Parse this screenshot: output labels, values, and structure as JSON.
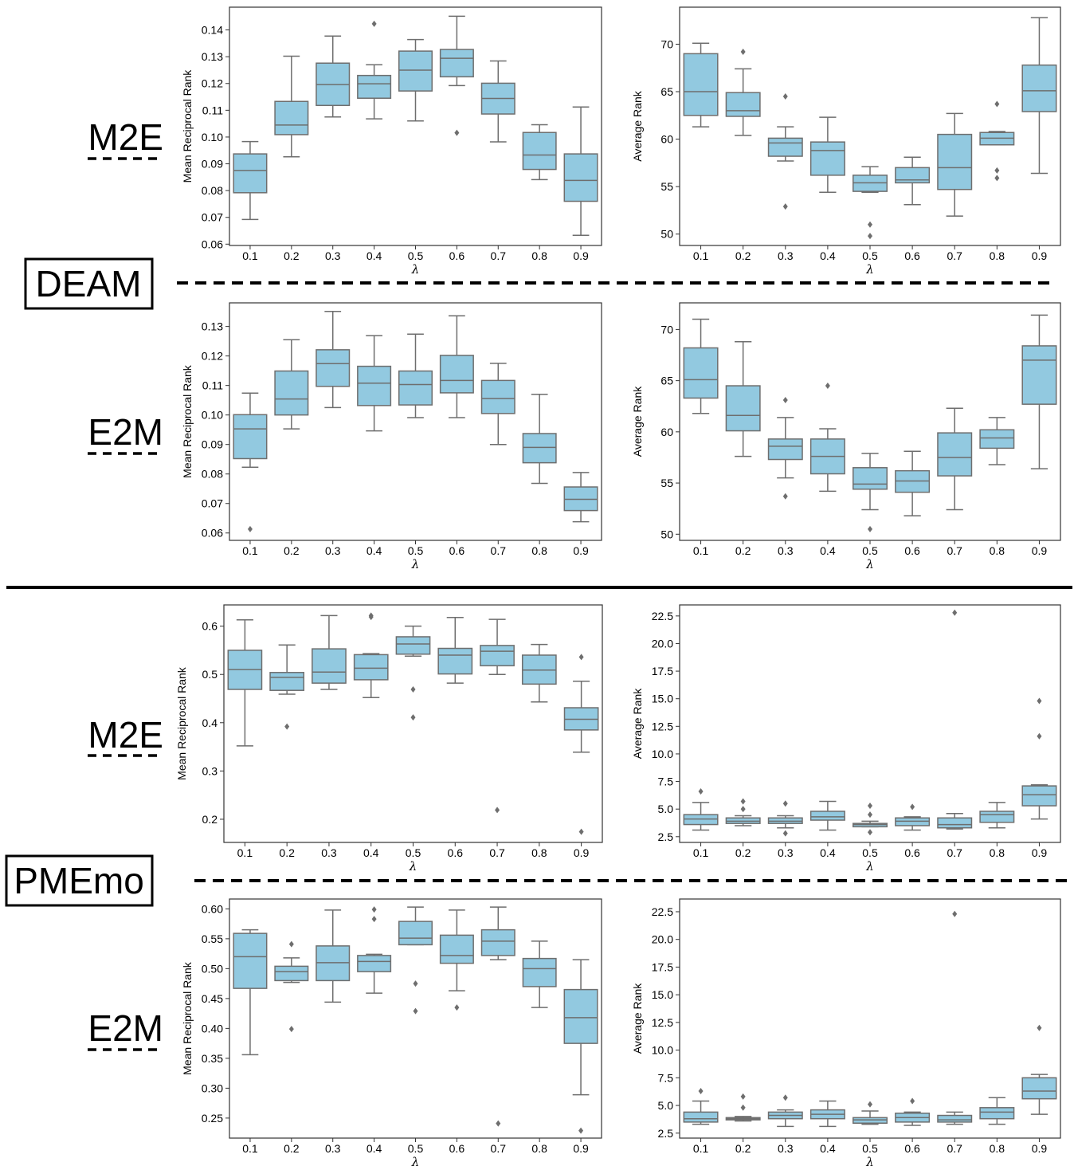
{
  "figure": {
    "groups": [
      {
        "name": "DEAM",
        "rows": [
          "M2E",
          "E2M"
        ]
      },
      {
        "name": "PMEmo",
        "rows": [
          "M2E",
          "E2M"
        ]
      }
    ]
  },
  "style": {
    "box_fill": "#92c9e0",
    "box_edge": "#6e6e6e",
    "separator": "#000000"
  },
  "chart_data": [
    {
      "id": "deam-m2e-mrr",
      "type": "box",
      "group": "DEAM",
      "row": "M2E",
      "xlabel": "λ",
      "ylabel": "Mean Reciprocal Rank",
      "categories": [
        "0.1",
        "0.2",
        "0.3",
        "0.4",
        "0.5",
        "0.6",
        "0.7",
        "0.8",
        "0.9"
      ],
      "ylim": [
        0.0595,
        0.1485
      ],
      "yticks": [
        0.06,
        0.07,
        0.08,
        0.09,
        0.1,
        0.11,
        0.12,
        0.13,
        0.14
      ],
      "ytick_labels": [
        "0.06",
        "0.07",
        "0.08",
        "0.09",
        "0.10",
        "0.11",
        "0.12",
        "0.13",
        "0.14"
      ],
      "boxes": [
        {
          "whislo": 0.0692,
          "q1": 0.0792,
          "med": 0.0875,
          "q3": 0.0937,
          "whishi": 0.0983,
          "fliers": []
        },
        {
          "whislo": 0.0926,
          "q1": 0.1009,
          "med": 0.1045,
          "q3": 0.1133,
          "whishi": 0.1302,
          "fliers": []
        },
        {
          "whislo": 0.1075,
          "q1": 0.1118,
          "med": 0.1196,
          "q3": 0.1276,
          "whishi": 0.1377,
          "fliers": []
        },
        {
          "whislo": 0.1068,
          "q1": 0.1145,
          "med": 0.1199,
          "q3": 0.123,
          "whishi": 0.127,
          "fliers": [
            0.1423
          ]
        },
        {
          "whislo": 0.106,
          "q1": 0.1172,
          "med": 0.125,
          "q3": 0.1321,
          "whishi": 0.1364,
          "fliers": []
        },
        {
          "whislo": 0.1192,
          "q1": 0.1225,
          "med": 0.1294,
          "q3": 0.1327,
          "whishi": 0.1451,
          "fliers": [
            0.1016
          ]
        },
        {
          "whislo": 0.0982,
          "q1": 0.1086,
          "med": 0.1144,
          "q3": 0.1201,
          "whishi": 0.1284,
          "fliers": []
        },
        {
          "whislo": 0.0841,
          "q1": 0.0879,
          "med": 0.0933,
          "q3": 0.1017,
          "whishi": 0.1046,
          "fliers": []
        },
        {
          "whislo": 0.0633,
          "q1": 0.076,
          "med": 0.0838,
          "q3": 0.0937,
          "whishi": 0.1112,
          "fliers": []
        }
      ]
    },
    {
      "id": "deam-m2e-ar",
      "type": "box",
      "group": "DEAM",
      "row": "M2E",
      "xlabel": "λ",
      "ylabel": "Average Rank",
      "categories": [
        "0.1",
        "0.2",
        "0.3",
        "0.4",
        "0.5",
        "0.6",
        "0.7",
        "0.8",
        "0.9"
      ],
      "ylim": [
        48.8,
        73.9
      ],
      "yticks": [
        50,
        55,
        60,
        65,
        70
      ],
      "ytick_labels": [
        "50",
        "55",
        "60",
        "65",
        "70"
      ],
      "boxes": [
        {
          "whislo": 61.3,
          "q1": 62.5,
          "med": 65.0,
          "q3": 69.0,
          "whishi": 70.1,
          "fliers": []
        },
        {
          "whislo": 60.4,
          "q1": 62.4,
          "med": 63.0,
          "q3": 64.9,
          "whishi": 67.4,
          "fliers": [
            69.2
          ]
        },
        {
          "whislo": 57.7,
          "q1": 58.2,
          "med": 59.6,
          "q3": 60.1,
          "whishi": 61.3,
          "fliers": [
            64.5,
            52.9
          ]
        },
        {
          "whislo": 54.4,
          "q1": 56.2,
          "med": 58.8,
          "q3": 59.7,
          "whishi": 62.3,
          "fliers": []
        },
        {
          "whislo": 54.4,
          "q1": 54.5,
          "med": 55.4,
          "q3": 56.2,
          "whishi": 57.1,
          "fliers": [
            51.0,
            49.8
          ]
        },
        {
          "whislo": 53.1,
          "q1": 55.4,
          "med": 55.7,
          "q3": 57.0,
          "whishi": 58.1,
          "fliers": []
        },
        {
          "whislo": 51.9,
          "q1": 54.7,
          "med": 57.0,
          "q3": 60.5,
          "whishi": 62.7,
          "fliers": []
        },
        {
          "whislo": 59.4,
          "q1": 59.4,
          "med": 60.1,
          "q3": 60.7,
          "whishi": 60.8,
          "fliers": [
            63.7,
            56.7,
            55.9
          ]
        },
        {
          "whislo": 56.4,
          "q1": 62.9,
          "med": 65.1,
          "q3": 67.8,
          "whishi": 72.8,
          "fliers": []
        }
      ]
    },
    {
      "id": "deam-e2m-mrr",
      "type": "box",
      "group": "DEAM",
      "row": "E2M",
      "xlabel": "λ",
      "ylabel": "Mean Reciprocal Rank",
      "categories": [
        "0.1",
        "0.2",
        "0.3",
        "0.4",
        "0.5",
        "0.6",
        "0.7",
        "0.8",
        "0.9"
      ],
      "ylim": [
        0.0575,
        0.138
      ],
      "yticks": [
        0.06,
        0.07,
        0.08,
        0.09,
        0.1,
        0.11,
        0.12,
        0.13
      ],
      "ytick_labels": [
        "0.06",
        "0.07",
        "0.08",
        "0.09",
        "0.10",
        "0.11",
        "0.12",
        "0.13"
      ],
      "boxes": [
        {
          "whislo": 0.0823,
          "q1": 0.0852,
          "med": 0.0953,
          "q3": 0.1001,
          "whishi": 0.1074,
          "fliers": [
            0.0613
          ]
        },
        {
          "whislo": 0.0953,
          "q1": 0.1,
          "med": 0.1054,
          "q3": 0.1149,
          "whishi": 0.1255,
          "fliers": []
        },
        {
          "whislo": 0.1025,
          "q1": 0.1097,
          "med": 0.1174,
          "q3": 0.1221,
          "whishi": 0.1351,
          "fliers": []
        },
        {
          "whislo": 0.0946,
          "q1": 0.1032,
          "med": 0.1108,
          "q3": 0.1165,
          "whishi": 0.1269,
          "fliers": []
        },
        {
          "whislo": 0.0991,
          "q1": 0.1034,
          "med": 0.1103,
          "q3": 0.1149,
          "whishi": 0.1274,
          "fliers": []
        },
        {
          "whislo": 0.0991,
          "q1": 0.1075,
          "med": 0.1117,
          "q3": 0.1202,
          "whishi": 0.1336,
          "fliers": []
        },
        {
          "whislo": 0.09,
          "q1": 0.1005,
          "med": 0.1056,
          "q3": 0.1117,
          "whishi": 0.1175,
          "fliers": []
        },
        {
          "whislo": 0.0768,
          "q1": 0.0838,
          "med": 0.089,
          "q3": 0.0937,
          "whishi": 0.107,
          "fliers": []
        },
        {
          "whislo": 0.0638,
          "q1": 0.0676,
          "med": 0.0714,
          "q3": 0.0756,
          "whishi": 0.0805,
          "fliers": []
        }
      ]
    },
    {
      "id": "deam-e2m-ar",
      "type": "box",
      "group": "DEAM",
      "row": "E2M",
      "xlabel": "λ",
      "ylabel": "Average Rank",
      "categories": [
        "0.1",
        "0.2",
        "0.3",
        "0.4",
        "0.5",
        "0.6",
        "0.7",
        "0.8",
        "0.9"
      ],
      "ylim": [
        49.4,
        72.6
      ],
      "yticks": [
        50,
        55,
        60,
        65,
        70
      ],
      "ytick_labels": [
        "50",
        "55",
        "60",
        "65",
        "70"
      ],
      "boxes": [
        {
          "whislo": 61.8,
          "q1": 63.3,
          "med": 65.1,
          "q3": 68.2,
          "whishi": 71.0,
          "fliers": []
        },
        {
          "whislo": 57.6,
          "q1": 60.1,
          "med": 61.6,
          "q3": 64.5,
          "whishi": 68.8,
          "fliers": []
        },
        {
          "whislo": 55.5,
          "q1": 57.3,
          "med": 58.6,
          "q3": 59.3,
          "whishi": 61.4,
          "fliers": [
            63.1,
            53.7
          ]
        },
        {
          "whislo": 54.2,
          "q1": 55.9,
          "med": 57.6,
          "q3": 59.3,
          "whishi": 60.3,
          "fliers": [
            64.5
          ]
        },
        {
          "whislo": 52.4,
          "q1": 54.4,
          "med": 54.9,
          "q3": 56.5,
          "whishi": 57.9,
          "fliers": [
            50.5
          ]
        },
        {
          "whislo": 51.8,
          "q1": 54.1,
          "med": 55.2,
          "q3": 56.2,
          "whishi": 58.1,
          "fliers": []
        },
        {
          "whislo": 52.4,
          "q1": 55.7,
          "med": 57.5,
          "q3": 59.9,
          "whishi": 62.3,
          "fliers": []
        },
        {
          "whislo": 56.8,
          "q1": 58.4,
          "med": 59.4,
          "q3": 60.2,
          "whishi": 61.4,
          "fliers": []
        },
        {
          "whislo": 56.4,
          "q1": 62.7,
          "med": 67.0,
          "q3": 68.4,
          "whishi": 71.4,
          "fliers": []
        }
      ]
    },
    {
      "id": "pmemo-m2e-mrr",
      "type": "box",
      "group": "PMEmo",
      "row": "M2E",
      "xlabel": "λ",
      "ylabel": "Mean Reciprocal Rank",
      "categories": [
        "0.1",
        "0.2",
        "0.3",
        "0.4",
        "0.5",
        "0.6",
        "0.7",
        "0.8",
        "0.9"
      ],
      "ylim": [
        0.152,
        0.644
      ],
      "yticks": [
        0.2,
        0.3,
        0.4,
        0.5,
        0.6
      ],
      "ytick_labels": [
        "0.2",
        "0.3",
        "0.4",
        "0.5",
        "0.6"
      ],
      "boxes": [
        {
          "whislo": 0.352,
          "q1": 0.469,
          "med": 0.51,
          "q3": 0.55,
          "whishi": 0.613,
          "fliers": []
        },
        {
          "whislo": 0.459,
          "q1": 0.467,
          "med": 0.494,
          "q3": 0.504,
          "whishi": 0.561,
          "fliers": [
            0.392
          ]
        },
        {
          "whislo": 0.469,
          "q1": 0.482,
          "med": 0.505,
          "q3": 0.553,
          "whishi": 0.622,
          "fliers": []
        },
        {
          "whislo": 0.452,
          "q1": 0.489,
          "med": 0.513,
          "q3": 0.541,
          "whishi": 0.543,
          "fliers": [
            0.619,
            0.622
          ]
        },
        {
          "whislo": 0.538,
          "q1": 0.542,
          "med": 0.563,
          "q3": 0.578,
          "whishi": 0.6,
          "fliers": [
            0.469,
            0.411
          ]
        },
        {
          "whislo": 0.482,
          "q1": 0.501,
          "med": 0.54,
          "q3": 0.554,
          "whishi": 0.618,
          "fliers": []
        },
        {
          "whislo": 0.5,
          "q1": 0.518,
          "med": 0.548,
          "q3": 0.56,
          "whishi": 0.614,
          "fliers": [
            0.219
          ]
        },
        {
          "whislo": 0.443,
          "q1": 0.48,
          "med": 0.509,
          "q3": 0.54,
          "whishi": 0.562,
          "fliers": []
        },
        {
          "whislo": 0.339,
          "q1": 0.385,
          "med": 0.407,
          "q3": 0.431,
          "whishi": 0.486,
          "fliers": [
            0.536,
            0.174
          ]
        }
      ]
    },
    {
      "id": "pmemo-m2e-ar",
      "type": "box",
      "group": "PMEmo",
      "row": "M2E",
      "xlabel": "λ",
      "ylabel": "Average Rank",
      "categories": [
        "0.1",
        "0.2",
        "0.3",
        "0.4",
        "0.5",
        "0.6",
        "0.7",
        "0.8",
        "0.9"
      ],
      "ylim": [
        1.98,
        23.5
      ],
      "yticks": [
        2.5,
        5.0,
        7.5,
        10.0,
        12.5,
        15.0,
        17.5,
        20.0,
        22.5
      ],
      "ytick_labels": [
        "2.5",
        "5.0",
        "7.5",
        "10.0",
        "12.5",
        "15.0",
        "17.5",
        "20.0",
        "22.5"
      ],
      "boxes": [
        {
          "whislo": 3.1,
          "q1": 3.6,
          "med": 4.1,
          "q3": 4.5,
          "whishi": 5.6,
          "fliers": [
            6.6
          ]
        },
        {
          "whislo": 3.5,
          "q1": 3.7,
          "med": 3.9,
          "q3": 4.2,
          "whishi": 4.4,
          "fliers": [
            5.0,
            5.7
          ]
        },
        {
          "whislo": 3.3,
          "q1": 3.7,
          "med": 3.9,
          "q3": 4.2,
          "whishi": 4.4,
          "fliers": [
            5.5,
            2.8
          ]
        },
        {
          "whislo": 3.1,
          "q1": 4.0,
          "med": 4.3,
          "q3": 4.8,
          "whishi": 5.7,
          "fliers": []
        },
        {
          "whislo": 3.4,
          "q1": 3.4,
          "med": 3.6,
          "q3": 3.7,
          "whishi": 3.9,
          "fliers": [
            4.5,
            5.3,
            2.9
          ]
        },
        {
          "whislo": 3.1,
          "q1": 3.5,
          "med": 3.9,
          "q3": 4.2,
          "whishi": 4.3,
          "fliers": [
            5.2
          ]
        },
        {
          "whislo": 3.2,
          "q1": 3.3,
          "med": 3.6,
          "q3": 4.2,
          "whishi": 4.6,
          "fliers": [
            22.8
          ]
        },
        {
          "whislo": 3.3,
          "q1": 3.8,
          "med": 4.5,
          "q3": 4.8,
          "whishi": 5.6,
          "fliers": []
        },
        {
          "whislo": 4.1,
          "q1": 5.3,
          "med": 6.3,
          "q3": 7.1,
          "whishi": 7.2,
          "fliers": [
            14.8,
            11.6
          ]
        }
      ]
    },
    {
      "id": "pmemo-e2m-mrr",
      "type": "box",
      "group": "PMEmo",
      "row": "E2M",
      "xlabel": "λ",
      "ylabel": "Mean Reciprocal Rank",
      "categories": [
        "0.1",
        "0.2",
        "0.3",
        "0.4",
        "0.5",
        "0.6",
        "0.7",
        "0.8",
        "0.9"
      ],
      "ylim": [
        0.2165,
        0.6165
      ],
      "yticks": [
        0.25,
        0.3,
        0.35,
        0.4,
        0.45,
        0.5,
        0.55,
        0.6
      ],
      "ytick_labels": [
        "0.25",
        "0.30",
        "0.35",
        "0.40",
        "0.45",
        "0.50",
        "0.55",
        "0.60"
      ],
      "boxes": [
        {
          "whislo": 0.356,
          "q1": 0.467,
          "med": 0.52,
          "q3": 0.559,
          "whishi": 0.565,
          "fliers": []
        },
        {
          "whislo": 0.477,
          "q1": 0.48,
          "med": 0.495,
          "q3": 0.504,
          "whishi": 0.518,
          "fliers": [
            0.541,
            0.399
          ]
        },
        {
          "whislo": 0.444,
          "q1": 0.48,
          "med": 0.51,
          "q3": 0.538,
          "whishi": 0.598,
          "fliers": []
        },
        {
          "whislo": 0.459,
          "q1": 0.495,
          "med": 0.512,
          "q3": 0.522,
          "whishi": 0.524,
          "fliers": [
            0.599,
            0.583
          ]
        },
        {
          "whislo": 0.54,
          "q1": 0.54,
          "med": 0.551,
          "q3": 0.579,
          "whishi": 0.603,
          "fliers": [
            0.475,
            0.429
          ]
        },
        {
          "whislo": 0.463,
          "q1": 0.509,
          "med": 0.522,
          "q3": 0.556,
          "whishi": 0.598,
          "fliers": [
            0.435
          ]
        },
        {
          "whislo": 0.515,
          "q1": 0.522,
          "med": 0.546,
          "q3": 0.565,
          "whishi": 0.603,
          "fliers": [
            0.241
          ]
        },
        {
          "whislo": 0.435,
          "q1": 0.47,
          "med": 0.5,
          "q3": 0.517,
          "whishi": 0.546,
          "fliers": []
        },
        {
          "whislo": 0.289,
          "q1": 0.375,
          "med": 0.418,
          "q3": 0.465,
          "whishi": 0.515,
          "fliers": [
            0.229
          ]
        }
      ]
    },
    {
      "id": "pmemo-e2m-ar",
      "type": "box",
      "group": "PMEmo",
      "row": "E2M",
      "xlabel": "λ",
      "ylabel": "Average Rank",
      "categories": [
        "0.1",
        "0.2",
        "0.3",
        "0.4",
        "0.5",
        "0.6",
        "0.7",
        "0.8",
        "0.9"
      ],
      "ylim": [
        2.05,
        23.65
      ],
      "yticks": [
        2.5,
        5.0,
        7.5,
        10.0,
        12.5,
        15.0,
        17.5,
        20.0,
        22.5
      ],
      "ytick_labels": [
        "2.5",
        "5.0",
        "7.5",
        "10.0",
        "12.5",
        "15.0",
        "17.5",
        "20.0",
        "22.5"
      ],
      "boxes": [
        {
          "whislo": 3.3,
          "q1": 3.5,
          "med": 3.8,
          "q3": 4.4,
          "whishi": 5.4,
          "fliers": [
            6.3
          ]
        },
        {
          "whislo": 3.6,
          "q1": 3.7,
          "med": 3.8,
          "q3": 3.9,
          "whishi": 4.0,
          "fliers": [
            4.8,
            5.8
          ]
        },
        {
          "whislo": 3.1,
          "q1": 3.8,
          "med": 4.1,
          "q3": 4.4,
          "whishi": 4.6,
          "fliers": [
            5.7
          ]
        },
        {
          "whislo": 3.1,
          "q1": 3.8,
          "med": 4.2,
          "q3": 4.6,
          "whishi": 5.4,
          "fliers": []
        },
        {
          "whislo": 3.3,
          "q1": 3.4,
          "med": 3.7,
          "q3": 3.9,
          "whishi": 4.5,
          "fliers": [
            5.1
          ]
        },
        {
          "whislo": 3.2,
          "q1": 3.5,
          "med": 3.9,
          "q3": 4.3,
          "whishi": 4.4,
          "fliers": [
            5.4
          ]
        },
        {
          "whislo": 3.3,
          "q1": 3.5,
          "med": 3.7,
          "q3": 4.1,
          "whishi": 4.4,
          "fliers": [
            22.3
          ]
        },
        {
          "whislo": 3.3,
          "q1": 3.8,
          "med": 4.4,
          "q3": 4.8,
          "whishi": 5.7,
          "fliers": []
        },
        {
          "whislo": 4.2,
          "q1": 5.6,
          "med": 6.3,
          "q3": 7.5,
          "whishi": 7.8,
          "fliers": [
            12.0
          ]
        }
      ]
    }
  ]
}
